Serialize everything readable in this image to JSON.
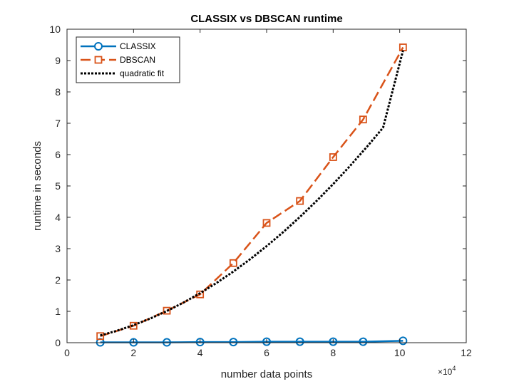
{
  "chart_data": {
    "type": "line",
    "title": "CLASSIX vs DBSCAN runtime",
    "xlabel": "number data points",
    "ylabel": "runtime in seconds",
    "x_exponent_label": "×10",
    "x_exponent_power": "4",
    "xlim": [
      0,
      12
    ],
    "ylim": [
      0,
      10
    ],
    "x_ticks": [
      0,
      2,
      4,
      6,
      8,
      10,
      12
    ],
    "y_ticks": [
      0,
      1,
      2,
      3,
      4,
      5,
      6,
      7,
      8,
      9,
      10
    ],
    "grid": false,
    "legend_position": "top-left",
    "series": [
      {
        "name": "CLASSIX",
        "color": "#0072BD",
        "line": "solid",
        "marker": "circle",
        "x": [
          1.0,
          2.0,
          3.0,
          4.0,
          5.0,
          6.0,
          7.0,
          8.0,
          8.9,
          10.1
        ],
        "y": [
          0.01,
          0.01,
          0.01,
          0.02,
          0.02,
          0.03,
          0.03,
          0.03,
          0.03,
          0.06
        ]
      },
      {
        "name": "DBSCAN",
        "color": "#D95319",
        "line": "dashed",
        "marker": "square",
        "x": [
          1.0,
          2.0,
          3.0,
          4.0,
          5.0,
          6.0,
          7.0,
          8.0,
          8.9,
          10.1
        ],
        "y": [
          0.21,
          0.54,
          1.02,
          1.54,
          2.54,
          3.82,
          4.52,
          5.92,
          7.12,
          9.42
        ]
      },
      {
        "name": "quadratic fit",
        "color": "#000000",
        "line": "dotted",
        "marker": "none",
        "x": [
          1.0,
          1.5,
          2.0,
          2.5,
          3.0,
          3.5,
          4.0,
          4.5,
          5.0,
          5.5,
          6.0,
          6.5,
          7.0,
          7.5,
          8.0,
          8.5,
          9.0,
          9.5,
          10.1
        ],
        "y": [
          0.23,
          0.38,
          0.56,
          0.77,
          1.01,
          1.28,
          1.58,
          1.91,
          2.27,
          2.66,
          3.08,
          3.53,
          4.01,
          4.52,
          5.06,
          5.63,
          6.23,
          6.86,
          9.32
        ]
      }
    ]
  }
}
